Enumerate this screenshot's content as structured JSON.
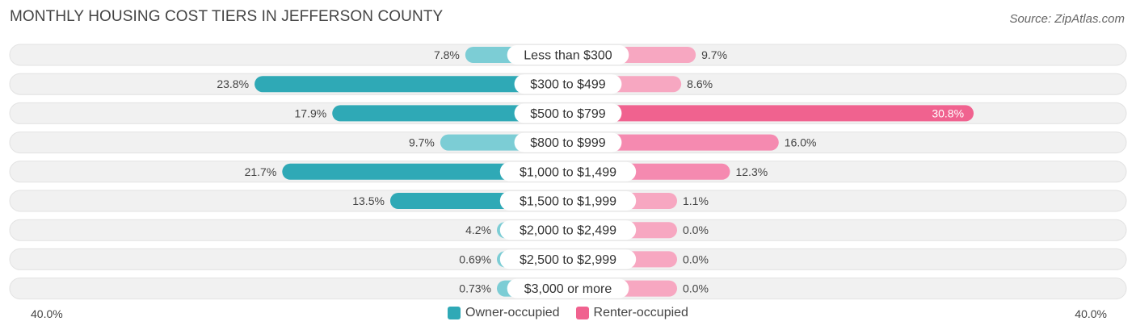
{
  "title": "MONTHLY HOUSING COST TIERS IN JEFFERSON COUNTY",
  "source": "Source: ZipAtlas.com",
  "colors": {
    "owner": "#2fa9b6",
    "owner_light": "#7ccdd5",
    "renter": "#f0628f",
    "renter_light": "#f7a7c1"
  },
  "chart_data": {
    "type": "bar",
    "orientation": "horizontal-diverging",
    "categories": [
      "Less than $300",
      "$300 to $499",
      "$500 to $799",
      "$800 to $999",
      "$1,000 to $1,499",
      "$1,500 to $1,999",
      "$2,000 to $2,499",
      "$2,500 to $2,999",
      "$3,000 or more"
    ],
    "series": [
      {
        "name": "Owner-occupied",
        "values": [
          7.8,
          23.8,
          17.9,
          9.7,
          21.7,
          13.5,
          4.2,
          0.69,
          0.73
        ],
        "labels": [
          "7.8%",
          "23.8%",
          "17.9%",
          "9.7%",
          "21.7%",
          "13.5%",
          "4.2%",
          "0.69%",
          "0.73%"
        ]
      },
      {
        "name": "Renter-occupied",
        "values": [
          9.7,
          8.6,
          30.8,
          16.0,
          12.3,
          1.1,
          0.0,
          0.0,
          0.0
        ],
        "labels": [
          "9.7%",
          "8.6%",
          "30.8%",
          "16.0%",
          "12.3%",
          "1.1%",
          "0.0%",
          "0.0%",
          "0.0%"
        ]
      }
    ],
    "axis": {
      "min_label": "40.0%",
      "max_label": "40.0%",
      "range": [
        -40,
        40
      ]
    },
    "legend": [
      "Owner-occupied",
      "Renter-occupied"
    ],
    "legend_position": "bottom-center"
  }
}
